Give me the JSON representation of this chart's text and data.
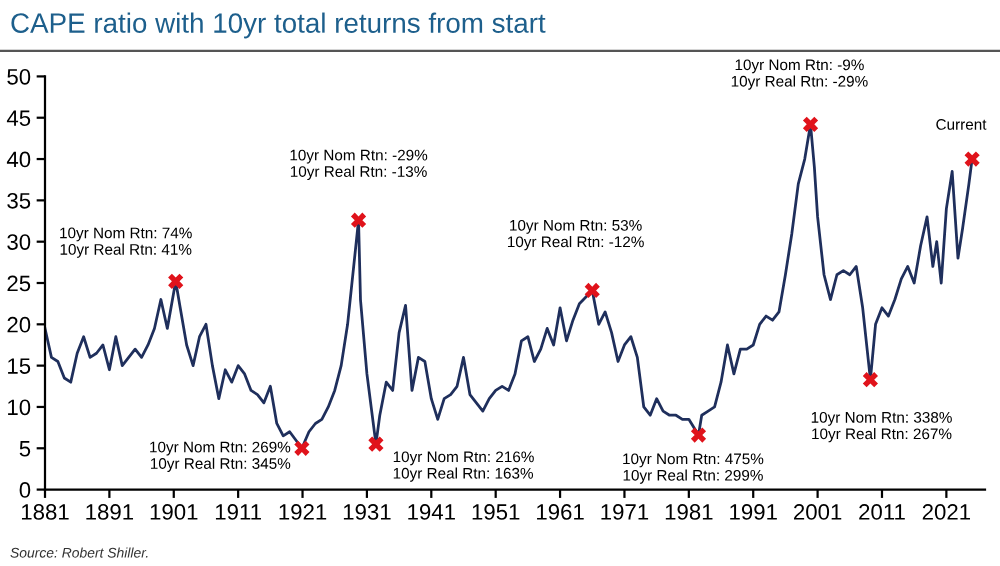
{
  "chart_data": {
    "type": "line",
    "title": "CAPE ratio with 10yr total returns from start",
    "xlim": [
      1881,
      2027
    ],
    "xticks": [
      1881,
      1891,
      1901,
      1911,
      1921,
      1931,
      1941,
      1951,
      1961,
      1971,
      1981,
      1991,
      2001,
      2011,
      2021
    ],
    "ylim": [
      0,
      50
    ],
    "yticks": [
      0,
      5,
      10,
      15,
      20,
      25,
      30,
      35,
      40,
      45,
      50
    ],
    "grid": false,
    "legend": false,
    "series": [
      {
        "type": "line",
        "color": "#1f2f5c",
        "marker": "none",
        "line_style": "solid",
        "x": [
          1881,
          1882,
          1883,
          1884,
          1885,
          1886,
          1887,
          1888,
          1889,
          1890,
          1891,
          1892,
          1893,
          1894,
          1895,
          1896,
          1897,
          1898,
          1899,
          1900,
          1901.3,
          1902,
          1903,
          1904,
          1905,
          1906,
          1907,
          1908,
          1909,
          1910,
          1911,
          1912,
          1913,
          1914,
          1915,
          1916,
          1917,
          1918,
          1919,
          1920.9,
          1922,
          1923,
          1924,
          1925,
          1926,
          1927,
          1928,
          1929.7,
          1930,
          1931,
          1932.4,
          1933,
          1934,
          1935,
          1936,
          1937,
          1938,
          1939,
          1940,
          1941,
          1942,
          1943,
          1944,
          1945,
          1946,
          1947,
          1948,
          1949,
          1950,
          1951,
          1952,
          1953,
          1954,
          1955,
          1956,
          1957,
          1958,
          1959,
          1960,
          1961,
          1962,
          1963,
          1964,
          1966,
          1967,
          1968,
          1969,
          1970,
          1971,
          1972,
          1973,
          1974,
          1975,
          1976,
          1977,
          1978,
          1979,
          1980,
          1981,
          1982.5,
          1983,
          1984,
          1985,
          1986,
          1987,
          1988,
          1989,
          1990,
          1991,
          1992,
          1993,
          1994,
          1995,
          1996,
          1997,
          1998,
          1999,
          1999.9,
          2000.5,
          2001,
          2002,
          2003,
          2004,
          2005,
          2006,
          2007,
          2008,
          2009.2,
          2010,
          2011,
          2012,
          2013,
          2014,
          2015,
          2016,
          2017,
          2018,
          2018.9,
          2019.5,
          2020.2,
          2021,
          2021.9,
          2022.8,
          2023.5,
          2024.5,
          2025
        ],
        "values": [
          19.5,
          16,
          15.5,
          13.5,
          13,
          16.5,
          18.5,
          16,
          16.5,
          17.5,
          14.5,
          18.5,
          15,
          16,
          17,
          16,
          17.5,
          19.5,
          23,
          19.5,
          25.2,
          22,
          17.5,
          15,
          18.5,
          20,
          15,
          11,
          14.5,
          13,
          15,
          14,
          12,
          11.5,
          10.5,
          12.5,
          8,
          6.5,
          7,
          5,
          7,
          8,
          8.5,
          10,
          12,
          15,
          20,
          32.6,
          23,
          14,
          5.5,
          9,
          13,
          12,
          19,
          22.3,
          12,
          16,
          15.5,
          11,
          8.5,
          11,
          11.5,
          12.5,
          16,
          11.5,
          10.5,
          9.5,
          11,
          12,
          12.5,
          12,
          14,
          18,
          18.5,
          15.5,
          17,
          19.5,
          17.5,
          22,
          18,
          20.5,
          22.5,
          24.1,
          20,
          21.5,
          19,
          15.5,
          17.5,
          18.5,
          16,
          10,
          9,
          11,
          9.5,
          9,
          9,
          8.5,
          8.5,
          6.6,
          9,
          9.5,
          10,
          13,
          17.5,
          14,
          17,
          17,
          17.5,
          20,
          21,
          20.5,
          21.5,
          26,
          31,
          37,
          40,
          44.2,
          39,
          33,
          26,
          23,
          26,
          26.5,
          26,
          27,
          22,
          13.3,
          20,
          22,
          21,
          23,
          25.5,
          27,
          25,
          29.5,
          33,
          27,
          30,
          25,
          34,
          38.5,
          28,
          31.5,
          37,
          40
        ]
      },
      {
        "type": "scatter",
        "color": "#e0131b",
        "marker": "cross",
        "x": [
          1901.3,
          1920.9,
          1929.7,
          1932.4,
          1966,
          1982.5,
          1999.9,
          2009.2,
          2025
        ],
        "values": [
          25.2,
          5,
          32.6,
          5.5,
          24.1,
          6.6,
          44.2,
          13.3,
          40
        ]
      }
    ],
    "annotations": [
      {
        "text": "10yr Nom Rtn: 74%\n10yr Real Rtn: 41%",
        "x": 1901.3,
        "y": 25.2
      },
      {
        "text": "10yr Nom Rtn: 269%\n10yr Real Rtn: 345%",
        "x": 1920.9,
        "y": 5
      },
      {
        "text": "10yr Nom Rtn: -29%\n10yr Real Rtn: -13%",
        "x": 1929.7,
        "y": 32.6
      },
      {
        "text": "10yr Nom Rtn: 216%\n10yr Real Rtn: 163%",
        "x": 1932.4,
        "y": 5.5
      },
      {
        "text": "10yr Nom Rtn: 53%\n10yr Real Rtn: -12%",
        "x": 1966,
        "y": 24.1
      },
      {
        "text": "10yr Nom Rtn: 475%\n10yr Real Rtn: 299%",
        "x": 1982.5,
        "y": 6.6
      },
      {
        "text": "10yr Nom Rtn: -9%\n10yr Real Rtn: -29%",
        "x": 1999.9,
        "y": 44.2
      },
      {
        "text": "10yr Nom Rtn: 338%\n10yr Real Rtn: 267%",
        "x": 2009.2,
        "y": 13.3
      },
      {
        "text": "Current",
        "x": 2025,
        "y": 40
      },
      "Source: Robert Shiller."
    ]
  }
}
